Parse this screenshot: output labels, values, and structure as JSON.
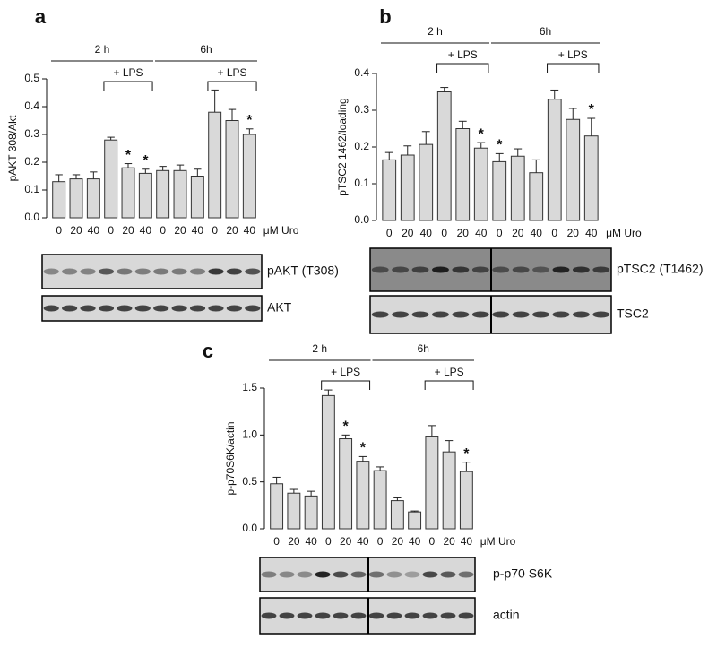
{
  "chart_data": [
    {
      "type": "bar",
      "panel": "a",
      "y_label": "pAKT 308/Akt",
      "x_unit": "μM Uro",
      "categories": [
        "0",
        "20",
        "40",
        "0",
        "20",
        "40",
        "0",
        "20",
        "40",
        "0",
        "20",
        "40"
      ],
      "values": [
        0.13,
        0.14,
        0.14,
        0.28,
        0.18,
        0.16,
        0.17,
        0.17,
        0.15,
        0.38,
        0.35,
        0.3
      ],
      "errors": [
        0.025,
        0.015,
        0.025,
        0.01,
        0.015,
        0.015,
        0.015,
        0.02,
        0.025,
        0.08,
        0.04,
        0.02
      ],
      "significance": [
        null,
        null,
        null,
        null,
        "*",
        "*",
        null,
        null,
        null,
        null,
        null,
        "*"
      ],
      "groups": [
        "2 h",
        "6h"
      ],
      "brackets": [
        "+ LPS",
        "+ LPS"
      ],
      "ylim": [
        0,
        0.5
      ],
      "yticks": [
        {
          "value": 0,
          "label": "0.0"
        },
        0.1,
        0.2,
        0.3,
        0.4,
        0.5
      ],
      "color": "#d9d9d9",
      "grid": false,
      "blot_labels": [
        "pAKT (T308)",
        "AKT"
      ]
    },
    {
      "type": "bar",
      "panel": "b",
      "y_label": "pTSC2 1462/loading",
      "x_unit": "μM Uro",
      "categories": [
        "0",
        "20",
        "40",
        "0",
        "20",
        "40",
        "0",
        "20",
        "40",
        "0",
        "20",
        "40"
      ],
      "values": [
        0.165,
        0.178,
        0.207,
        0.35,
        0.25,
        0.197,
        0.16,
        0.175,
        0.13,
        0.33,
        0.275,
        0.23
      ],
      "errors": [
        0.02,
        0.025,
        0.035,
        0.012,
        0.02,
        0.015,
        0.022,
        0.02,
        0.035,
        0.025,
        0.03,
        0.048
      ],
      "significance": [
        null,
        null,
        null,
        null,
        null,
        "*",
        "*",
        null,
        null,
        null,
        null,
        "*"
      ],
      "groups": [
        "2 h",
        "6h"
      ],
      "brackets": [
        "+ LPS",
        "+ LPS"
      ],
      "ylim": [
        0,
        0.4
      ],
      "yticks": [
        {
          "value": 0,
          "label": "0.0"
        },
        0.1,
        0.2,
        0.3,
        0.4
      ],
      "color": "#d9d9d9",
      "grid": false,
      "blot_labels": [
        "pTSC2 (T1462)",
        "TSC2"
      ]
    },
    {
      "type": "bar",
      "panel": "c",
      "y_label": "p-p70S6K/actin",
      "x_unit": "μM Uro",
      "categories": [
        "0",
        "20",
        "40",
        "0",
        "20",
        "40",
        "0",
        "20",
        "40",
        "0",
        "20",
        "40"
      ],
      "values": [
        0.48,
        0.38,
        0.35,
        1.42,
        0.96,
        0.72,
        0.62,
        0.3,
        0.18,
        0.98,
        0.82,
        0.61
      ],
      "errors": [
        0.07,
        0.04,
        0.05,
        0.06,
        0.04,
        0.05,
        0.04,
        0.03,
        0.01,
        0.12,
        0.12,
        0.1
      ],
      "significance": [
        null,
        null,
        null,
        null,
        "*",
        "*",
        null,
        null,
        null,
        null,
        null,
        "*"
      ],
      "groups": [
        "2 h",
        "6h"
      ],
      "brackets": [
        "+ LPS",
        "+ LPS"
      ],
      "ylim": [
        0,
        1.5
      ],
      "yticks": [
        {
          "value": 0,
          "label": "0.0"
        },
        0.5,
        {
          "value": 1,
          "label": "1.0"
        },
        1.5
      ],
      "color": "#d9d9d9",
      "grid": false,
      "blot_labels": [
        "p-p70 S6K",
        "actin"
      ]
    }
  ]
}
